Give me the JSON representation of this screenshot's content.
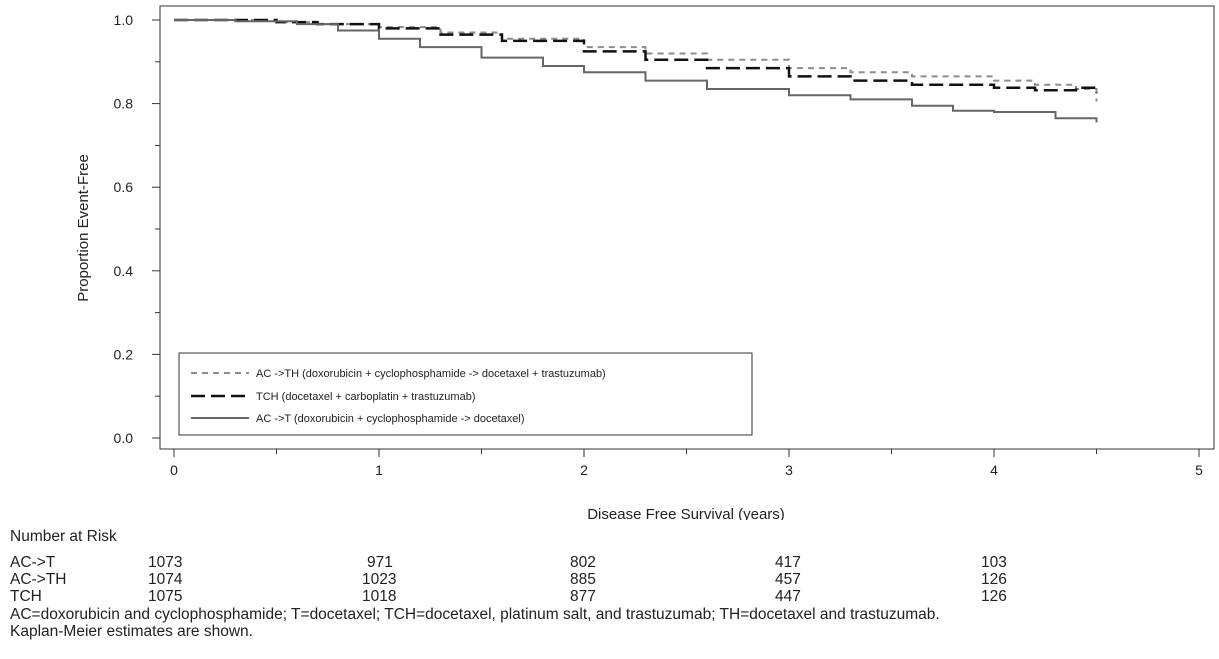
{
  "chart_data": {
    "type": "line",
    "xlabel": "Disease Free Survival (years)",
    "ylabel": "Proportion Event-Free",
    "xlim": [
      0,
      5
    ],
    "ylim": [
      0,
      1
    ],
    "x_ticks": [
      "0",
      "1",
      "2",
      "3",
      "4",
      "5"
    ],
    "y_ticks": [
      "0.0",
      "0.2",
      "0.4",
      "0.6",
      "0.8",
      "1.0"
    ],
    "legend_position": "bottom-left",
    "grid": false,
    "series": [
      {
        "name": "AC ->TH (doxorubicin + cyclophosphamide -> docetaxel + trastuzumab)",
        "style": "short-dash",
        "color": "#8c8c8c",
        "points": [
          [
            0,
            1.0
          ],
          [
            0.5,
            0.995
          ],
          [
            0.7,
            0.99
          ],
          [
            1.0,
            0.983
          ],
          [
            1.3,
            0.97
          ],
          [
            1.6,
            0.955
          ],
          [
            2.0,
            0.935
          ],
          [
            2.3,
            0.92
          ],
          [
            2.6,
            0.905
          ],
          [
            3.0,
            0.885
          ],
          [
            3.3,
            0.875
          ],
          [
            3.6,
            0.865
          ],
          [
            4.0,
            0.855
          ],
          [
            4.2,
            0.845
          ],
          [
            4.4,
            0.835
          ],
          [
            4.5,
            0.805
          ]
        ]
      },
      {
        "name": "TCH (docetaxel + carboplatin + trastuzumab)",
        "style": "long-dash",
        "color": "#111111",
        "points": [
          [
            0,
            1.0
          ],
          [
            0.5,
            0.995
          ],
          [
            0.7,
            0.99
          ],
          [
            1.0,
            0.98
          ],
          [
            1.3,
            0.965
          ],
          [
            1.6,
            0.95
          ],
          [
            2.0,
            0.925
          ],
          [
            2.3,
            0.905
          ],
          [
            2.6,
            0.885
          ],
          [
            3.0,
            0.865
          ],
          [
            3.3,
            0.855
          ],
          [
            3.6,
            0.845
          ],
          [
            4.0,
            0.838
          ],
          [
            4.2,
            0.832
          ],
          [
            4.4,
            0.838
          ],
          [
            4.5,
            0.825
          ]
        ]
      },
      {
        "name": "AC ->T (doxorubicin + cyclophosphamide -> docetaxel)",
        "style": "solid",
        "color": "#666666",
        "points": [
          [
            0,
            1.0
          ],
          [
            0.3,
            0.997
          ],
          [
            0.6,
            0.99
          ],
          [
            0.8,
            0.975
          ],
          [
            1.0,
            0.955
          ],
          [
            1.2,
            0.935
          ],
          [
            1.5,
            0.91
          ],
          [
            1.8,
            0.89
          ],
          [
            2.0,
            0.875
          ],
          [
            2.3,
            0.855
          ],
          [
            2.6,
            0.835
          ],
          [
            3.0,
            0.82
          ],
          [
            3.3,
            0.81
          ],
          [
            3.6,
            0.795
          ],
          [
            3.8,
            0.783
          ],
          [
            4.0,
            0.78
          ],
          [
            4.3,
            0.765
          ],
          [
            4.5,
            0.755
          ]
        ]
      }
    ]
  },
  "risk_table": {
    "title": "Number at Risk",
    "rows": [
      {
        "label": "AC->T",
        "values": [
          "1073",
          "971",
          "802",
          "417",
          "103"
        ]
      },
      {
        "label": "AC->TH",
        "values": [
          "1074",
          "1023",
          "885",
          "457",
          "126"
        ]
      },
      {
        "label": "TCH",
        "values": [
          "1075",
          "1018",
          "877",
          "447",
          "126"
        ]
      }
    ]
  },
  "footnotes": [
    "AC=doxorubicin and cyclophosphamide; T=docetaxel; TCH=docetaxel, platinum salt, and trastuzumab; TH=docetaxel and trastuzumab.",
    "Kaplan-Meier estimates are shown."
  ]
}
